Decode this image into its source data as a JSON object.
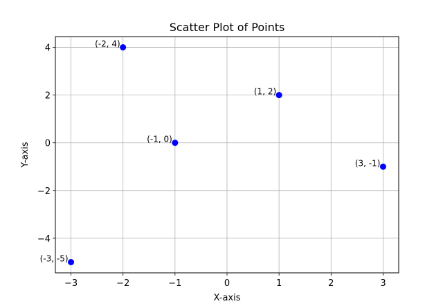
{
  "chart_data": {
    "type": "scatter",
    "title": "Scatter Plot of Points",
    "xlabel": "X-axis",
    "ylabel": "Y-axis",
    "xlim": [
      -3.3,
      3.3
    ],
    "ylim": [
      -5.45,
      4.45
    ],
    "x_ticks": [
      -3,
      -2,
      -1,
      0,
      1,
      2,
      3
    ],
    "y_ticks": [
      -4,
      -2,
      0,
      2,
      4
    ],
    "x_tick_labels": [
      "−3",
      "−2",
      "−1",
      "0",
      "1",
      "2",
      "3"
    ],
    "y_tick_labels": [
      "−4",
      "−2",
      "0",
      "2",
      "4"
    ],
    "grid": true,
    "marker_color": "#0000ff",
    "points": [
      {
        "x": 1,
        "y": 2,
        "label": "(1, 2)"
      },
      {
        "x": -2,
        "y": 4,
        "label": "(-2, 4)"
      },
      {
        "x": 3,
        "y": -1,
        "label": "(3, -1)"
      },
      {
        "x": -1,
        "y": 0,
        "label": "(-1, 0)"
      },
      {
        "x": -3,
        "y": -5,
        "label": "(-3, -5)"
      }
    ]
  }
}
